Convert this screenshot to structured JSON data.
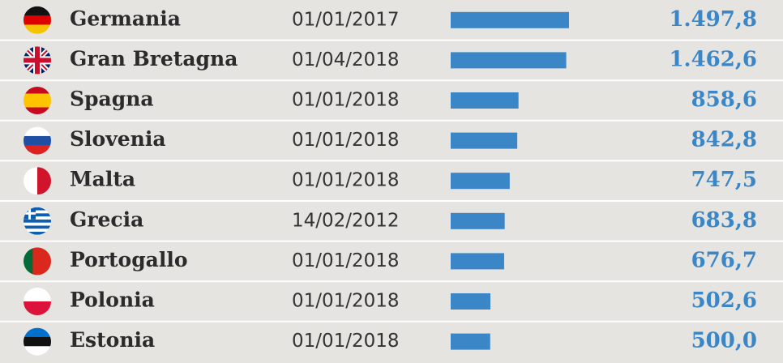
{
  "chart_data": {
    "type": "bar",
    "categories": [
      "Germania",
      "Gran Bretagna",
      "Spagna",
      "Slovenia",
      "Malta",
      "Grecia",
      "Portogallo",
      "Polonia",
      "Estonia"
    ],
    "dates": [
      "01/01/2017",
      "01/04/2018",
      "01/01/2018",
      "01/01/2018",
      "01/01/2018",
      "14/02/2012",
      "01/01/2018",
      "01/01/2018",
      "01/01/2018"
    ],
    "values": [
      1497.8,
      1462.6,
      858.6,
      842.8,
      747.5,
      683.8,
      676.7,
      502.6,
      500.0
    ],
    "value_labels": [
      "1.497,8",
      "1.462,6",
      "858,6",
      "842,8",
      "747,5",
      "683,8",
      "676,7",
      "502,6",
      "500,0"
    ],
    "color": "#3b86c6"
  }
}
